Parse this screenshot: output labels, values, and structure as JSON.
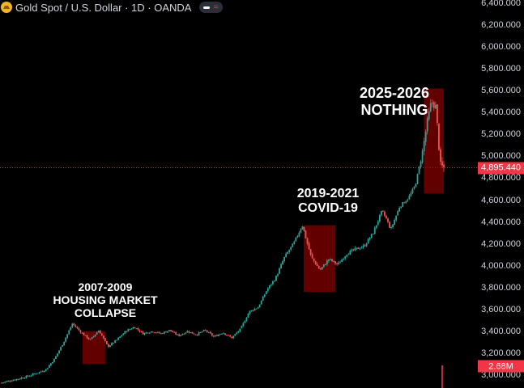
{
  "header": {
    "title": "Gold Spot / U.S. Dollar · 1D · OANDA",
    "symbol_icon": "gold-bar-icon",
    "status_icons": [
      "dash-icon",
      "wave-icon"
    ],
    "wave_glyph": "≈"
  },
  "chart_data": {
    "type": "candlestick",
    "title": "Gold Spot / U.S. Dollar · 1D · OANDA",
    "y_axis": {
      "position": "right",
      "ticks": [
        "6,400.000",
        "6,200.000",
        "6,000.000",
        "5,800.000",
        "5,600.000",
        "5,400.000",
        "5,200.000",
        "5,000.000",
        "4,800.000",
        "4,600.000",
        "4,400.000",
        "4,200.000",
        "4,000.000",
        "3,800.000",
        "3,600.000",
        "3,400.000",
        "3,200.000",
        "3,000.000"
      ],
      "range": [
        2920,
        6400
      ],
      "grid": false
    },
    "last_price": {
      "value": 4895.44,
      "label": "4,895.440",
      "color": "#f23645",
      "line": "dotted"
    },
    "volume_label": {
      "label": "2.68M",
      "color": "#f23645"
    },
    "colors": {
      "up": "#26a69a",
      "down": "#ef5350",
      "box": "#8b0000"
    },
    "price_path": [
      [
        0.0,
        2930
      ],
      [
        0.06,
        2990
      ],
      [
        0.1,
        3050
      ],
      [
        0.12,
        3150
      ],
      [
        0.14,
        3300
      ],
      [
        0.16,
        3470
      ],
      [
        0.18,
        3390
      ],
      [
        0.2,
        3320
      ],
      [
        0.22,
        3410
      ],
      [
        0.24,
        3260
      ],
      [
        0.26,
        3320
      ],
      [
        0.28,
        3400
      ],
      [
        0.3,
        3440
      ],
      [
        0.32,
        3380
      ],
      [
        0.34,
        3400
      ],
      [
        0.36,
        3380
      ],
      [
        0.38,
        3410
      ],
      [
        0.4,
        3360
      ],
      [
        0.42,
        3400
      ],
      [
        0.44,
        3370
      ],
      [
        0.46,
        3410
      ],
      [
        0.48,
        3350
      ],
      [
        0.5,
        3390
      ],
      [
        0.52,
        3340
      ],
      [
        0.54,
        3420
      ],
      [
        0.56,
        3580
      ],
      [
        0.58,
        3620
      ],
      [
        0.6,
        3780
      ],
      [
        0.62,
        3890
      ],
      [
        0.64,
        4080
      ],
      [
        0.66,
        4200
      ],
      [
        0.68,
        4370
      ],
      [
        0.7,
        4080
      ],
      [
        0.72,
        3960
      ],
      [
        0.74,
        4060
      ],
      [
        0.76,
        4010
      ],
      [
        0.78,
        4110
      ],
      [
        0.8,
        4150
      ],
      [
        0.82,
        4180
      ],
      [
        0.84,
        4300
      ],
      [
        0.86,
        4500
      ],
      [
        0.87,
        4430
      ],
      [
        0.88,
        4330
      ],
      [
        0.9,
        4540
      ],
      [
        0.92,
        4620
      ],
      [
        0.935,
        4730
      ],
      [
        0.95,
        5000
      ],
      [
        0.962,
        5300
      ],
      [
        0.972,
        5500
      ],
      [
        0.982,
        5450
      ],
      [
        0.992,
        4920
      ],
      [
        1.0,
        4895
      ]
    ],
    "annotations": [
      {
        "lines": [
          "2007-2009",
          "HOUSING MARKET",
          "COLLAPSE"
        ],
        "box": {
          "from": 0.183,
          "to": 0.235,
          "high": 3400,
          "low": 3100
        }
      },
      {
        "lines": [
          "2019-2021",
          "COVID-19"
        ],
        "box": {
          "from": 0.683,
          "to": 0.755,
          "high": 4370,
          "low": 3760
        }
      },
      {
        "lines": [
          "2025-2026",
          "NOTHING"
        ],
        "box": {
          "from": 0.955,
          "to": 1.0,
          "high": 5620,
          "low": 4660
        }
      }
    ]
  }
}
